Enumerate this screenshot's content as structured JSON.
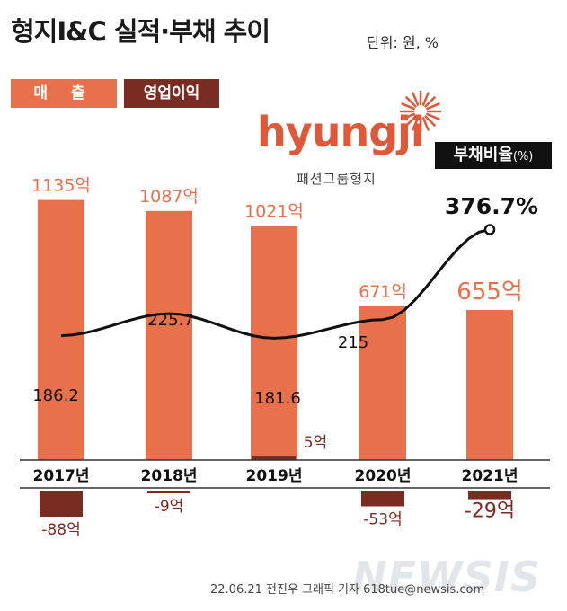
{
  "title": "형지I&C 실적·부채 추이",
  "unit": "단위: 원, %",
  "legend": {
    "sales": "매 출",
    "operating_profit": "영업이익"
  },
  "logo": {
    "name": "hyungji",
    "subtitle": "패션그룹형지"
  },
  "debt_box": {
    "label": "부채비율",
    "unit": "(%)"
  },
  "footer": "22.06.21 전진우 그래픽 기자 618tue@newsis.com",
  "watermark": "NEWSIS",
  "colors": {
    "sales": "#e8704b",
    "operating_profit": "#7a2b22",
    "sales_label": "#e8704b",
    "line": "#111111"
  },
  "chart_data": {
    "type": "bar",
    "categories": [
      "2017년",
      "2018년",
      "2019년",
      "2020년",
      "2021년"
    ],
    "series": [
      {
        "name": "매 출",
        "values": [
          1135,
          1087,
          1021,
          671,
          655
        ],
        "labels": [
          "1135억",
          "1087억",
          "1021억",
          "671억",
          "655억"
        ]
      },
      {
        "name": "영업이익",
        "values": [
          -88,
          -9,
          5,
          -53,
          -29
        ],
        "labels": [
          "-88억",
          "-9억",
          "5억",
          "-53억",
          "-29억"
        ]
      },
      {
        "name": "부채비율",
        "type": "line",
        "values": [
          186.2,
          225.7,
          181.6,
          215,
          376.7
        ],
        "labels": [
          "186.2",
          "225.7",
          "181.6",
          "215",
          "376.7%"
        ]
      }
    ]
  }
}
